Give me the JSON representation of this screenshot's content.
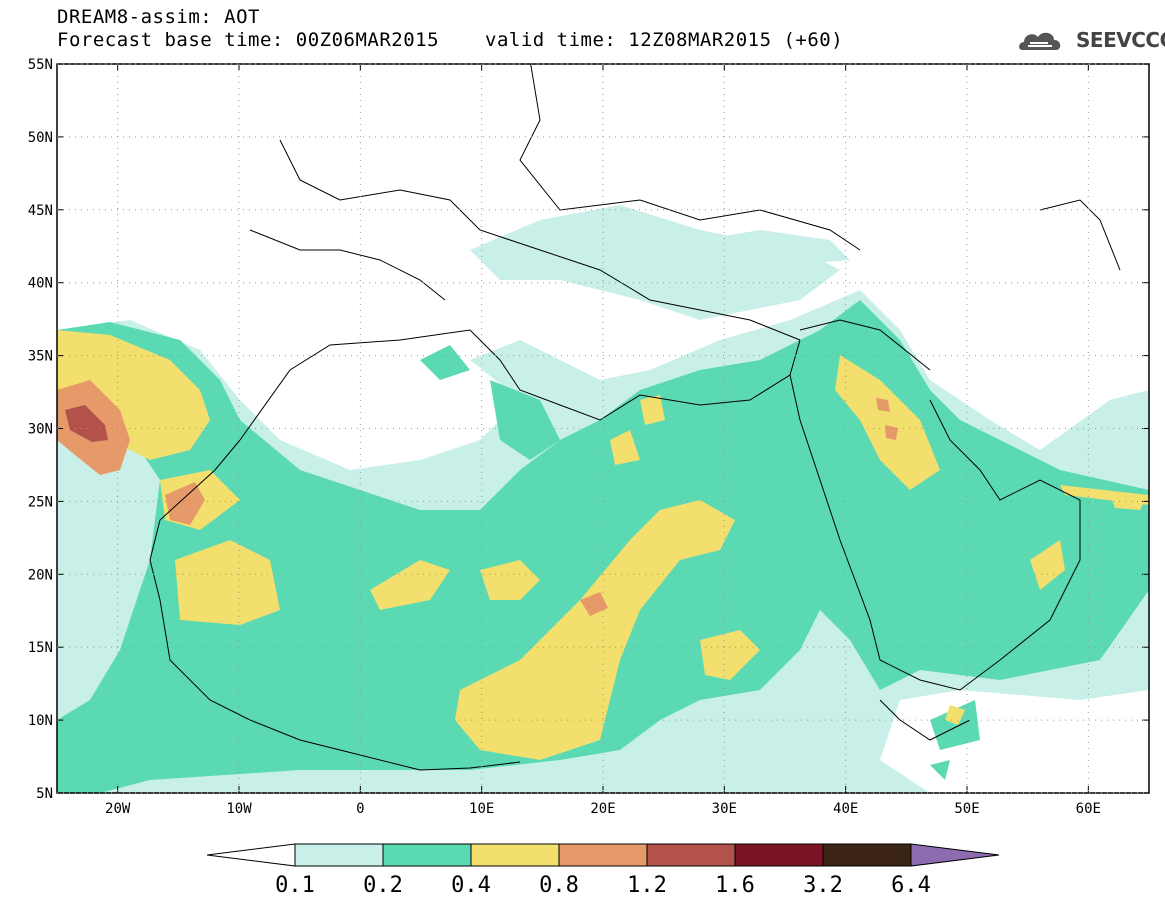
{
  "header": {
    "line1": "DREAM8-assim: AOT",
    "line2": "Forecast base time: 00Z06MAR2015",
    "line3": "valid time: 12Z08MAR2015 (+60)",
    "logo_text": "SEEVCCC"
  },
  "map": {
    "lon_range": [
      -25,
      65
    ],
    "lat_range": [
      5,
      55
    ],
    "lat_labels": [
      "55N",
      "50N",
      "45N",
      "40N",
      "35N",
      "30N",
      "25N",
      "20N",
      "15N",
      "10N",
      "5N"
    ],
    "lon_labels": [
      "20W",
      "10W",
      "0",
      "10E",
      "20E",
      "30E",
      "40E",
      "50E",
      "60E"
    ],
    "lat_values": [
      55,
      50,
      45,
      40,
      35,
      30,
      25,
      20,
      15,
      10,
      5
    ],
    "lon_values": [
      -20,
      -10,
      0,
      10,
      20,
      30,
      40,
      50,
      60
    ]
  },
  "colorbar": {
    "colors": [
      "#ffffff",
      "#c8f0e8",
      "#5ad9b3",
      "#f2df6e",
      "#e69a6a",
      "#b3524a",
      "#7a1424",
      "#3b2414",
      "#8c6bb1"
    ],
    "labels": [
      "0.1",
      "0.2",
      "0.4",
      "0.8",
      "1.2",
      "1.6",
      "3.2",
      "6.4"
    ]
  },
  "palette": {
    "very_low": "#c8f0e8",
    "low": "#5ad9b3",
    "mid": "#f2df6e",
    "high": "#e69a6a",
    "very_high": "#b3524a"
  }
}
